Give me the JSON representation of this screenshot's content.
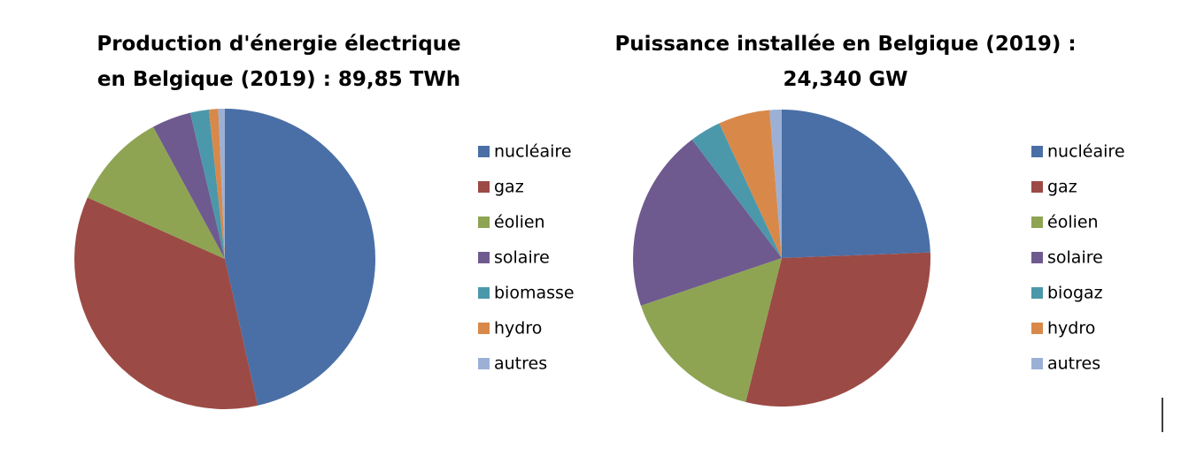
{
  "chart_data": [
    {
      "type": "pie",
      "title": "Production d'énergie électrique en Belgique (2019) : 89,85 TWh",
      "categories": [
        "nucléaire",
        "gaz",
        "éolien",
        "solaire",
        "biomasse",
        "hydro",
        "autres"
      ],
      "values": [
        46.5,
        35.2,
        10.4,
        4.2,
        2.0,
        1.0,
        0.7
      ],
      "colors": [
        "#4a6fa6",
        "#9c4a46",
        "#8ea453",
        "#6e5a8e",
        "#4b98ab",
        "#d8894a",
        "#9cb0d6"
      ],
      "legend": "right"
    },
    {
      "type": "pie",
      "title": "Puissance installée en Belgique (2019) : 24,340 GW",
      "categories": [
        "nucléaire",
        "gaz",
        "éolien",
        "solaire",
        "biogaz",
        "hydro",
        "autres"
      ],
      "values": [
        24.4,
        29.5,
        15.9,
        19.9,
        3.4,
        5.6,
        1.3
      ],
      "colors": [
        "#4a6fa6",
        "#9c4a46",
        "#8ea453",
        "#6e5a8e",
        "#4b98ab",
        "#d8894a",
        "#9cb0d6"
      ],
      "legend": "right"
    }
  ]
}
